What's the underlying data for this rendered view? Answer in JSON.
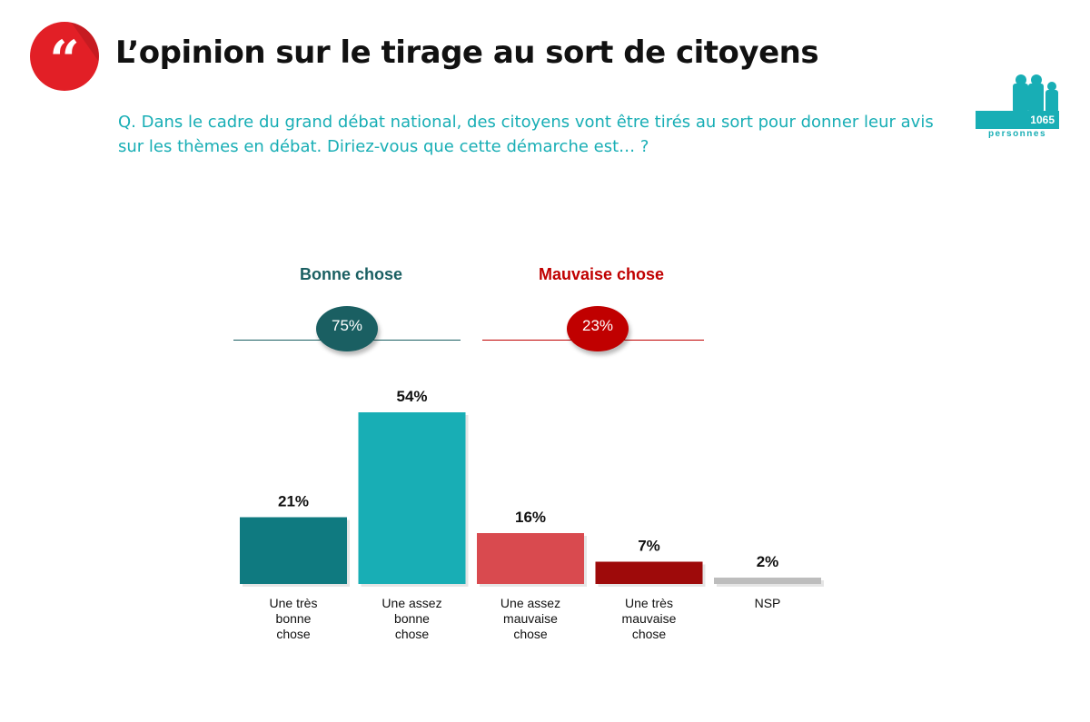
{
  "header": {
    "title": "L’opinion sur le tirage au sort de citoyens",
    "quote_icon": "quote-mark-icon",
    "question": "Q. Dans le cadre du grand débat national, des citoyens vont être tirés au sort pour donner leur avis sur les thèmes en débat. Diriez-vous que cette démarche est… ?"
  },
  "sample": {
    "icon": "people-icon",
    "count": "1065",
    "unit": "personnes"
  },
  "colors": {
    "teal_dark": "#0f7a80",
    "teal": "#18aeb5",
    "red_light": "#d94a4f",
    "red_dark": "#9e0a0a",
    "grey": "#bdbdbd",
    "accent_red": "#e21f26",
    "group_teal": "#1a5f62",
    "group_red": "#c00000"
  },
  "groups": [
    {
      "label": "Bonne chose",
      "value": "75%"
    },
    {
      "label": "Mauvaise chose",
      "value": "23%"
    }
  ],
  "chart_data": {
    "type": "bar",
    "categories": [
      "Une très bonne chose",
      "Une assez bonne chose",
      "Une assez mauvaise chose",
      "Une très mauvaise chose",
      "NSP"
    ],
    "category_lines": [
      [
        "Une très",
        "bonne",
        "chose"
      ],
      [
        "Une assez",
        "bonne",
        "chose"
      ],
      [
        "Une assez",
        "mauvaise",
        "chose"
      ],
      [
        "Une très",
        "mauvaise",
        "chose"
      ],
      [
        "NSP"
      ]
    ],
    "values": [
      21,
      54,
      16,
      7,
      2
    ],
    "value_labels": [
      "21%",
      "54%",
      "16%",
      "7%",
      "2%"
    ],
    "bar_colors": [
      "#0f7a80",
      "#18aeb5",
      "#d94a4f",
      "#9e0a0a",
      "#bdbdbd"
    ],
    "grid": false,
    "legend": "none"
  }
}
